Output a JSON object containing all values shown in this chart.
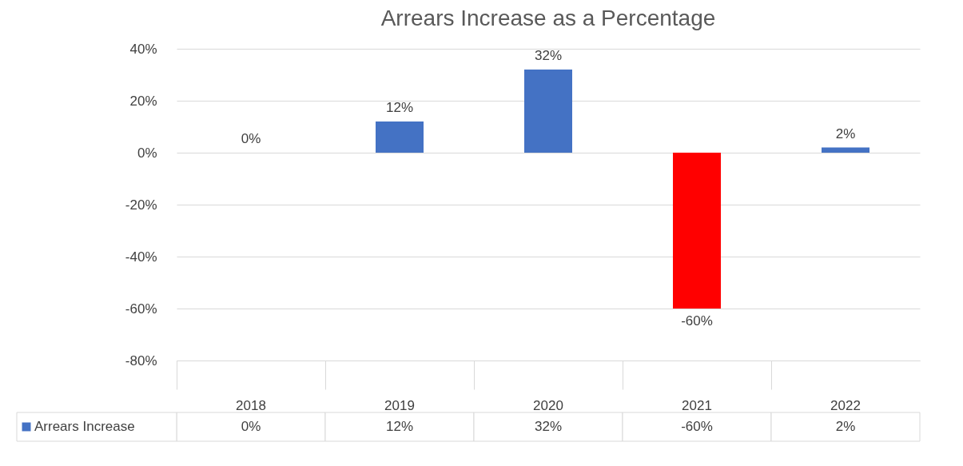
{
  "chart_data": {
    "type": "bar",
    "title": "Arrears Increase as a Percentage",
    "categories": [
      "2018",
      "2019",
      "2020",
      "2021",
      "2022"
    ],
    "series": [
      {
        "name": "Arrears Increase",
        "color": "#4472c4",
        "colors": [
          "#4472c4",
          "#4472c4",
          "#4472c4",
          "#ff0000",
          "#4472c4"
        ],
        "values": [
          0,
          12,
          32,
          -60,
          2
        ],
        "value_labels": [
          "0%",
          "12%",
          "32%",
          "-60%",
          "2%"
        ]
      }
    ],
    "ylim": [
      -80,
      40
    ],
    "yticks": [
      {
        "value": -80,
        "label": "-80%"
      },
      {
        "value": -60,
        "label": "-60%"
      },
      {
        "value": -40,
        "label": "-40%"
      },
      {
        "value": -20,
        "label": "-20%"
      },
      {
        "value": 0,
        "label": "0%"
      },
      {
        "value": 20,
        "label": "20%"
      },
      {
        "value": 40,
        "label": "40%"
      }
    ],
    "grid": "y",
    "legend": "bottom"
  }
}
